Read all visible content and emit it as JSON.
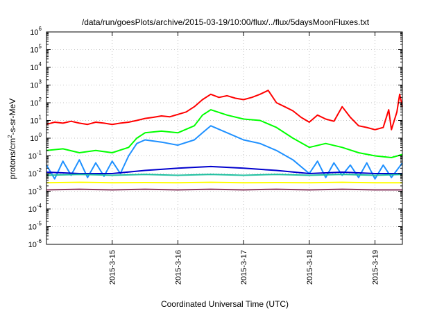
{
  "chart_data": {
    "type": "line",
    "title": "/data/run/goesPlots/archive/2015-03-19/10:00/flux/../flux/5daysMoonFluxes.txt",
    "xlabel": "Coordinated Universal Time (UTC)",
    "ylabel": {
      "prefix": "protons/cm",
      "superscript": "2",
      "suffix": "-s-sr-MeV"
    },
    "yscale": "log",
    "ylim": [
      1e-06,
      1000000.0
    ],
    "yticks": [
      {
        "value": 1e-06,
        "base": "10",
        "exp": "-6"
      },
      {
        "value": 1e-05,
        "base": "10",
        "exp": "-5"
      },
      {
        "value": 0.0001,
        "base": "10",
        "exp": "-4"
      },
      {
        "value": 0.001,
        "base": "10",
        "exp": "-3"
      },
      {
        "value": 0.01,
        "base": "10",
        "exp": "-2"
      },
      {
        "value": 0.1,
        "base": "10",
        "exp": "-1"
      },
      {
        "value": 1.0,
        "base": "10",
        "exp": "0"
      },
      {
        "value": 10.0,
        "base": "10",
        "exp": "1"
      },
      {
        "value": 100.0,
        "base": "10",
        "exp": "2"
      },
      {
        "value": 1000.0,
        "base": "10",
        "exp": "3"
      },
      {
        "value": 10000.0,
        "base": "10",
        "exp": "4"
      },
      {
        "value": 100000.0,
        "base": "10",
        "exp": "5"
      },
      {
        "value": 1000000.0,
        "base": "10",
        "exp": "6"
      }
    ],
    "xlim": [
      "2015-03-14 00:00",
      "2015-03-19 10:00"
    ],
    "xticks": [
      {
        "label": "2015-3-15",
        "at": "2015-03-15 00:00"
      },
      {
        "label": "2015-3-16",
        "at": "2015-03-16 00:00"
      },
      {
        "label": "2015-3-17",
        "at": "2015-03-17 00:00"
      },
      {
        "label": "2015-3-18",
        "at": "2015-03-18 00:00"
      },
      {
        "label": "2015-3-19",
        "at": "2015-03-19 00:00"
      }
    ],
    "grid": true,
    "series": [
      {
        "color": "#ff0000",
        "points": [
          [
            "2015-03-14 00:00",
            6
          ],
          [
            "2015-03-14 03:00",
            8
          ],
          [
            "2015-03-14 06:00",
            7
          ],
          [
            "2015-03-14 09:00",
            9
          ],
          [
            "2015-03-14 12:00",
            7
          ],
          [
            "2015-03-14 15:00",
            6
          ],
          [
            "2015-03-14 18:00",
            8
          ],
          [
            "2015-03-14 21:00",
            7
          ],
          [
            "2015-03-15 00:00",
            6
          ],
          [
            "2015-03-15 03:00",
            7
          ],
          [
            "2015-03-15 06:00",
            8
          ],
          [
            "2015-03-15 09:00",
            10
          ],
          [
            "2015-03-15 12:00",
            13
          ],
          [
            "2015-03-15 15:00",
            15
          ],
          [
            "2015-03-15 18:00",
            18
          ],
          [
            "2015-03-15 21:00",
            16
          ],
          [
            "2015-03-16 00:00",
            22
          ],
          [
            "2015-03-16 03:00",
            30
          ],
          [
            "2015-03-16 06:00",
            60
          ],
          [
            "2015-03-16 09:00",
            150
          ],
          [
            "2015-03-16 12:00",
            300
          ],
          [
            "2015-03-16 15:00",
            200
          ],
          [
            "2015-03-16 18:00",
            250
          ],
          [
            "2015-03-16 21:00",
            180
          ],
          [
            "2015-03-17 00:00",
            150
          ],
          [
            "2015-03-17 03:00",
            200
          ],
          [
            "2015-03-17 06:00",
            300
          ],
          [
            "2015-03-17 09:00",
            500
          ],
          [
            "2015-03-17 12:00",
            100
          ],
          [
            "2015-03-17 15:00",
            60
          ],
          [
            "2015-03-17 18:00",
            35
          ],
          [
            "2015-03-17 21:00",
            15
          ],
          [
            "2015-03-18 00:00",
            8
          ],
          [
            "2015-03-18 03:00",
            20
          ],
          [
            "2015-03-18 06:00",
            12
          ],
          [
            "2015-03-18 09:00",
            9
          ],
          [
            "2015-03-18 12:00",
            60
          ],
          [
            "2015-03-18 15:00",
            15
          ],
          [
            "2015-03-18 18:00",
            5
          ],
          [
            "2015-03-18 21:00",
            4
          ],
          [
            "2015-03-19 00:00",
            3
          ],
          [
            "2015-03-19 03:00",
            4
          ],
          [
            "2015-03-19 05:00",
            40
          ],
          [
            "2015-03-19 06:00",
            3
          ],
          [
            "2015-03-19 08:00",
            30
          ],
          [
            "2015-03-19 09:00",
            300
          ],
          [
            "2015-03-19 10:00",
            60
          ]
        ]
      },
      {
        "color": "#00ff00",
        "points": [
          [
            "2015-03-14 00:00",
            0.2
          ],
          [
            "2015-03-14 06:00",
            0.25
          ],
          [
            "2015-03-14 12:00",
            0.15
          ],
          [
            "2015-03-14 18:00",
            0.2
          ],
          [
            "2015-03-15 00:00",
            0.15
          ],
          [
            "2015-03-15 06:00",
            0.3
          ],
          [
            "2015-03-15 09:00",
            1
          ],
          [
            "2015-03-15 12:00",
            2
          ],
          [
            "2015-03-15 18:00",
            2.5
          ],
          [
            "2015-03-16 00:00",
            2
          ],
          [
            "2015-03-16 06:00",
            5
          ],
          [
            "2015-03-16 09:00",
            20
          ],
          [
            "2015-03-16 12:00",
            40
          ],
          [
            "2015-03-16 18:00",
            20
          ],
          [
            "2015-03-17 00:00",
            12
          ],
          [
            "2015-03-17 06:00",
            10
          ],
          [
            "2015-03-17 12:00",
            4
          ],
          [
            "2015-03-17 18:00",
            1
          ],
          [
            "2015-03-18 00:00",
            0.3
          ],
          [
            "2015-03-18 06:00",
            0.5
          ],
          [
            "2015-03-18 12:00",
            0.3
          ],
          [
            "2015-03-18 18:00",
            0.15
          ],
          [
            "2015-03-19 00:00",
            0.1
          ],
          [
            "2015-03-19 06:00",
            0.08
          ],
          [
            "2015-03-19 10:00",
            0.12
          ]
        ]
      },
      {
        "color": "#1e90ff",
        "points": [
          [
            "2015-03-14 00:00",
            0.03
          ],
          [
            "2015-03-14 03:00",
            0.005
          ],
          [
            "2015-03-14 06:00",
            0.05
          ],
          [
            "2015-03-14 09:00",
            0.008
          ],
          [
            "2015-03-14 12:00",
            0.06
          ],
          [
            "2015-03-14 15:00",
            0.006
          ],
          [
            "2015-03-14 18:00",
            0.04
          ],
          [
            "2015-03-14 21:00",
            0.007
          ],
          [
            "2015-03-15 00:00",
            0.05
          ],
          [
            "2015-03-15 03:00",
            0.01
          ],
          [
            "2015-03-15 06:00",
            0.1
          ],
          [
            "2015-03-15 09:00",
            0.5
          ],
          [
            "2015-03-15 12:00",
            0.8
          ],
          [
            "2015-03-15 18:00",
            0.6
          ],
          [
            "2015-03-16 00:00",
            0.4
          ],
          [
            "2015-03-16 06:00",
            0.8
          ],
          [
            "2015-03-16 09:00",
            2
          ],
          [
            "2015-03-16 12:00",
            5
          ],
          [
            "2015-03-16 18:00",
            2
          ],
          [
            "2015-03-17 00:00",
            0.8
          ],
          [
            "2015-03-17 06:00",
            0.5
          ],
          [
            "2015-03-17 12:00",
            0.2
          ],
          [
            "2015-03-17 18:00",
            0.06
          ],
          [
            "2015-03-18 00:00",
            0.01
          ],
          [
            "2015-03-18 03:00",
            0.05
          ],
          [
            "2015-03-18 06:00",
            0.006
          ],
          [
            "2015-03-18 09:00",
            0.04
          ],
          [
            "2015-03-18 12:00",
            0.008
          ],
          [
            "2015-03-18 15:00",
            0.03
          ],
          [
            "2015-03-18 18:00",
            0.006
          ],
          [
            "2015-03-18 21:00",
            0.04
          ],
          [
            "2015-03-19 00:00",
            0.005
          ],
          [
            "2015-03-19 03:00",
            0.03
          ],
          [
            "2015-03-19 06:00",
            0.006
          ],
          [
            "2015-03-19 10:00",
            0.04
          ]
        ]
      },
      {
        "color": "#0000cd",
        "points": [
          [
            "2015-03-14 00:00",
            0.012
          ],
          [
            "2015-03-14 12:00",
            0.01
          ],
          [
            "2015-03-15 00:00",
            0.01
          ],
          [
            "2015-03-15 12:00",
            0.015
          ],
          [
            "2015-03-16 00:00",
            0.02
          ],
          [
            "2015-03-16 12:00",
            0.025
          ],
          [
            "2015-03-17 00:00",
            0.02
          ],
          [
            "2015-03-17 12:00",
            0.015
          ],
          [
            "2015-03-18 00:00",
            0.01
          ],
          [
            "2015-03-18 12:00",
            0.012
          ],
          [
            "2015-03-19 00:00",
            0.01
          ],
          [
            "2015-03-19 10:00",
            0.01
          ]
        ]
      },
      {
        "color": "#20c0a0",
        "points": [
          [
            "2015-03-14 00:00",
            0.008
          ],
          [
            "2015-03-14 12:00",
            0.009
          ],
          [
            "2015-03-15 00:00",
            0.008
          ],
          [
            "2015-03-15 12:00",
            0.009
          ],
          [
            "2015-03-16 00:00",
            0.008
          ],
          [
            "2015-03-16 12:00",
            0.009
          ],
          [
            "2015-03-17 00:00",
            0.008
          ],
          [
            "2015-03-17 12:00",
            0.009
          ],
          [
            "2015-03-18 00:00",
            0.008
          ],
          [
            "2015-03-18 12:00",
            0.009
          ],
          [
            "2015-03-19 00:00",
            0.008
          ],
          [
            "2015-03-19 10:00",
            0.009
          ]
        ]
      },
      {
        "color": "#ffff00",
        "points": [
          [
            "2015-03-14 00:00",
            0.003
          ],
          [
            "2015-03-14 12:00",
            0.0032
          ],
          [
            "2015-03-15 00:00",
            0.003
          ],
          [
            "2015-03-15 12:00",
            0.0031
          ],
          [
            "2015-03-16 00:00",
            0.003
          ],
          [
            "2015-03-16 12:00",
            0.0032
          ],
          [
            "2015-03-17 00:00",
            0.003
          ],
          [
            "2015-03-17 12:00",
            0.0031
          ],
          [
            "2015-03-18 00:00",
            0.003
          ],
          [
            "2015-03-18 12:00",
            0.0032
          ],
          [
            "2015-03-19 00:00",
            0.003
          ],
          [
            "2015-03-19 10:00",
            0.003
          ]
        ]
      },
      {
        "color": "#8b3a62",
        "points": [
          [
            "2015-03-14 00:00",
            0.0012
          ],
          [
            "2015-03-14 12:00",
            0.0013
          ],
          [
            "2015-03-15 00:00",
            0.0012
          ],
          [
            "2015-03-15 12:00",
            0.0013
          ],
          [
            "2015-03-16 00:00",
            0.0012
          ],
          [
            "2015-03-16 12:00",
            0.0013
          ],
          [
            "2015-03-17 00:00",
            0.0012
          ],
          [
            "2015-03-17 12:00",
            0.0013
          ],
          [
            "2015-03-18 00:00",
            0.0012
          ],
          [
            "2015-03-18 12:00",
            0.0013
          ],
          [
            "2015-03-19 00:00",
            0.0012
          ],
          [
            "2015-03-19 10:00",
            0.0012
          ]
        ]
      }
    ]
  }
}
